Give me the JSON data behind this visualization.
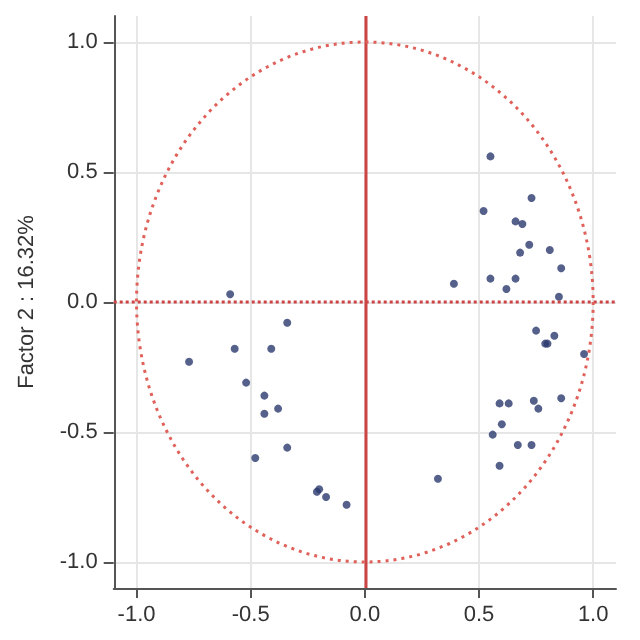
{
  "chart_data": {
    "type": "scatter",
    "ylabel": "Factor 2 : 16.32%",
    "xlim": [
      -1.1,
      1.1
    ],
    "ylim": [
      -1.1,
      1.1
    ],
    "xticks": [
      {
        "value": -1,
        "label": "-1.0"
      },
      {
        "value": -0.5,
        "label": "-0.5"
      },
      {
        "value": 0,
        "label": "0.0"
      },
      {
        "value": 0.5,
        "label": "0.5"
      },
      {
        "value": 1,
        "label": "1.0"
      }
    ],
    "yticks": [
      {
        "value": -1,
        "label": "-1.0"
      },
      {
        "value": -0.5,
        "label": "-0.5"
      },
      {
        "value": 0,
        "label": "0.0"
      },
      {
        "value": 0.5,
        "label": "0.5"
      },
      {
        "value": 1,
        "label": "1.0"
      }
    ],
    "grid": true,
    "marker": "circle",
    "ref_lines": [
      {
        "axis": "x",
        "value": 0,
        "color": "#cc4444",
        "line_style": "solid"
      },
      {
        "axis": "y",
        "value": 0,
        "color": "#cc4444",
        "line_style": "dotted"
      }
    ],
    "series": [
      {
        "color": "#2b3a6e",
        "x": [
          -0.59,
          -0.77,
          -0.57,
          -0.34,
          -0.41,
          -0.52,
          -0.44,
          -0.44,
          -0.38,
          -0.34,
          -0.48,
          -0.2,
          -0.21,
          -0.17,
          -0.08,
          0.55,
          0.52,
          0.73,
          0.66,
          0.69,
          0.72,
          0.68,
          0.81,
          0.86,
          0.39,
          0.55,
          0.66,
          0.62,
          0.85,
          0.75,
          0.83,
          0.79,
          0.8,
          0.96,
          0.59,
          0.63,
          0.74,
          0.76,
          0.86,
          0.6,
          0.56,
          0.67,
          0.73,
          0.59,
          0.32
        ],
        "values": [
          0.03,
          -0.23,
          -0.18,
          -0.08,
          -0.18,
          -0.31,
          -0.36,
          -0.43,
          -0.41,
          -0.56,
          -0.6,
          -0.72,
          -0.73,
          -0.75,
          -0.78,
          0.56,
          0.35,
          0.4,
          0.31,
          0.3,
          0.22,
          0.19,
          0.2,
          0.13,
          0.07,
          0.09,
          0.09,
          0.05,
          0.02,
          -0.11,
          -0.13,
          -0.16,
          -0.16,
          -0.2,
          -0.39,
          -0.39,
          -0.38,
          -0.41,
          -0.37,
          -0.47,
          -0.51,
          -0.55,
          -0.55,
          -0.63,
          -0.68
        ]
      }
    ]
  }
}
